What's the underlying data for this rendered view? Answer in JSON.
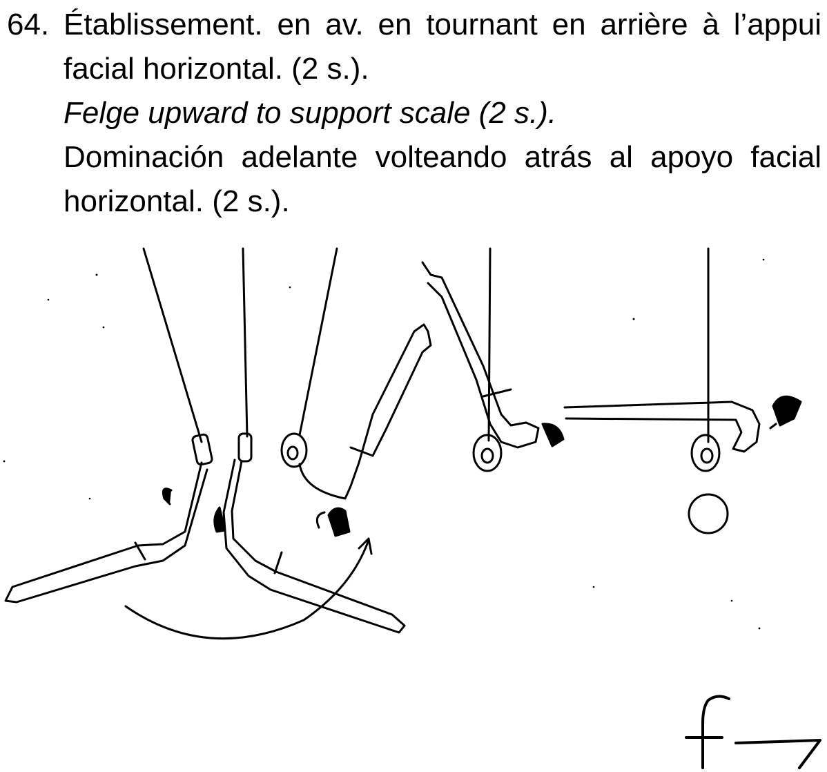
{
  "entry": {
    "number": "64.",
    "french": "Établissement. en av. en tournant en arrière à l’appui facial horizontal. (2 s.).",
    "english": "Felge upward to support scale (2 s.).",
    "spanish": "Dominación adelante volteando atrás al apoyo facial horizontal. (2 s.)."
  }
}
